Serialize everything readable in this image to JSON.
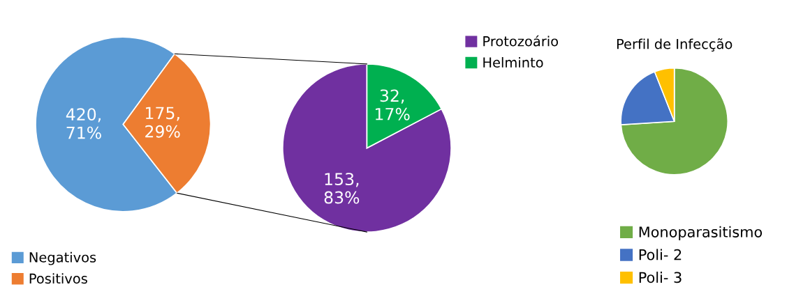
{
  "chart_data": [
    {
      "type": "pie",
      "categories": [
        "Negativos",
        "Positivos"
      ],
      "values": [
        420,
        175
      ],
      "colors": [
        "#5b9bd5",
        "#ed7d31"
      ],
      "value_labels": [
        "420,\n71%",
        "175,\n29%"
      ],
      "legend": "bottom left"
    },
    {
      "type": "pie",
      "categories": [
        "Protozoário",
        "Helminto"
      ],
      "values": [
        153,
        32
      ],
      "colors": [
        "#7030a0",
        "#00b050"
      ],
      "value_labels": [
        "153,\n83%",
        "32,\n17%"
      ],
      "legend": "top right"
    },
    {
      "type": "pie",
      "title": "Perfil de Infecção",
      "categories": [
        "Monoparasitismo",
        "Poli- 2",
        "Poli- 3"
      ],
      "values": [
        74,
        20,
        6
      ],
      "colors": [
        "#70ad47",
        "#4472c4",
        "#ffc000"
      ],
      "legend": "bottom"
    }
  ]
}
